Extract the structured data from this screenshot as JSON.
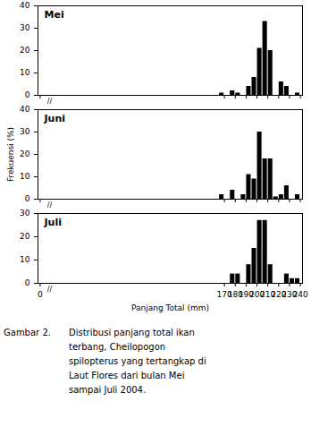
{
  "chart_data": [
    {
      "type": "histogram",
      "title": "Mei",
      "bins": [
        0,
        160,
        165,
        170,
        175,
        180,
        185,
        190,
        195,
        200,
        205,
        210,
        215,
        220,
        225,
        230,
        235,
        240,
        245
      ],
      "values": [
        0,
        0,
        1,
        0,
        2,
        1,
        0,
        4,
        8,
        21,
        33,
        20,
        0,
        6,
        4,
        0,
        1,
        0
      ],
      "color": "#000000",
      "xlim": [
        -2,
        242
      ],
      "xticks": [
        0,
        170,
        180,
        190,
        200,
        210,
        220,
        230,
        240
      ],
      "ylim": [
        0,
        40
      ],
      "yticks": [
        0,
        10,
        20,
        30,
        40
      ],
      "tick_labels": "y",
      "annotations": [
        "//"
      ]
    },
    {
      "type": "histogram",
      "title": "Juni",
      "bins": [
        0,
        160,
        165,
        170,
        175,
        180,
        185,
        190,
        195,
        200,
        205,
        210,
        215,
        220,
        225,
        230,
        235,
        240,
        245
      ],
      "values": [
        0,
        0,
        2,
        0,
        4,
        0,
        2,
        11,
        9,
        30,
        18,
        18,
        1,
        2,
        6,
        0,
        2,
        0
      ],
      "color": "#000000",
      "ylabel": "Frekuensi (%)",
      "xlim": [
        -2,
        242
      ],
      "xticks": [
        0,
        170,
        180,
        190,
        200,
        210,
        220,
        230,
        240
      ],
      "ylim": [
        0,
        40
      ],
      "yticks": [
        0,
        10,
        20,
        30,
        40
      ],
      "tick_labels": "y",
      "annotations": [
        "//"
      ]
    },
    {
      "type": "histogram",
      "title": "Juli",
      "bins": [
        0,
        160,
        165,
        170,
        175,
        180,
        185,
        190,
        195,
        200,
        205,
        210,
        215,
        220,
        225,
        230,
        235,
        240,
        245
      ],
      "values": [
        0,
        0,
        0,
        0,
        4,
        4,
        0,
        8,
        15,
        27,
        27,
        8,
        0,
        0,
        4,
        2,
        2,
        0
      ],
      "color": "#000000",
      "xlabel": "Panjang Total (mm)",
      "xlim": [
        -2,
        242
      ],
      "xticks": [
        0,
        170,
        180,
        190,
        200,
        210,
        220,
        230,
        240
      ],
      "ylim": [
        0,
        30
      ],
      "yticks": [
        0,
        10,
        20,
        30
      ],
      "annotations": [
        "//",
        "Gambar 2.",
        "Distribusi panjang total ikan",
        "terbang, Cheilopogon",
        "spilopterus yang tertangkap di",
        "Laut Flores dari bulan Mei",
        "sampai Juli 2004."
      ]
    }
  ]
}
